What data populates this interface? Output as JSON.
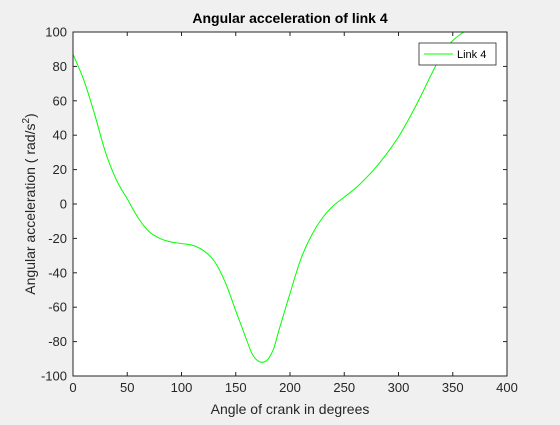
{
  "chart_data": {
    "type": "line",
    "title": "Angular acceleration of link 4",
    "xlabel": "Angle of crank in degrees",
    "ylabel_main": "Angular acceleration  ( rad/s",
    "ylabel_sup": "2",
    "ylabel_close": ")",
    "xlim": [
      0,
      400
    ],
    "ylim": [
      -100,
      100
    ],
    "xticks": [
      0,
      50,
      100,
      150,
      200,
      250,
      300,
      350,
      400
    ],
    "yticks": [
      -100,
      -80,
      -60,
      -40,
      -20,
      0,
      20,
      40,
      60,
      80,
      100
    ],
    "grid": false,
    "legend_position": "top-right",
    "series": [
      {
        "name": "Link 4",
        "color": "#00ff00",
        "x": [
          0,
          10,
          20,
          30,
          40,
          50,
          60,
          70,
          80,
          90,
          100,
          110,
          120,
          130,
          140,
          150,
          160,
          165,
          170,
          175,
          180,
          185,
          190,
          200,
          210,
          220,
          230,
          240,
          250,
          260,
          270,
          280,
          290,
          300,
          310,
          320,
          330,
          340,
          350,
          360
        ],
        "y": [
          87,
          72,
          52,
          30,
          14,
          3,
          -8,
          -16,
          -20,
          -22,
          -23,
          -24,
          -27,
          -33,
          -45,
          -62,
          -79,
          -87,
          -91,
          -92,
          -90,
          -84,
          -73,
          -52,
          -32,
          -18,
          -8,
          -1,
          4,
          9,
          15,
          22,
          30,
          39,
          50,
          62,
          75,
          87,
          95,
          100
        ]
      }
    ]
  }
}
